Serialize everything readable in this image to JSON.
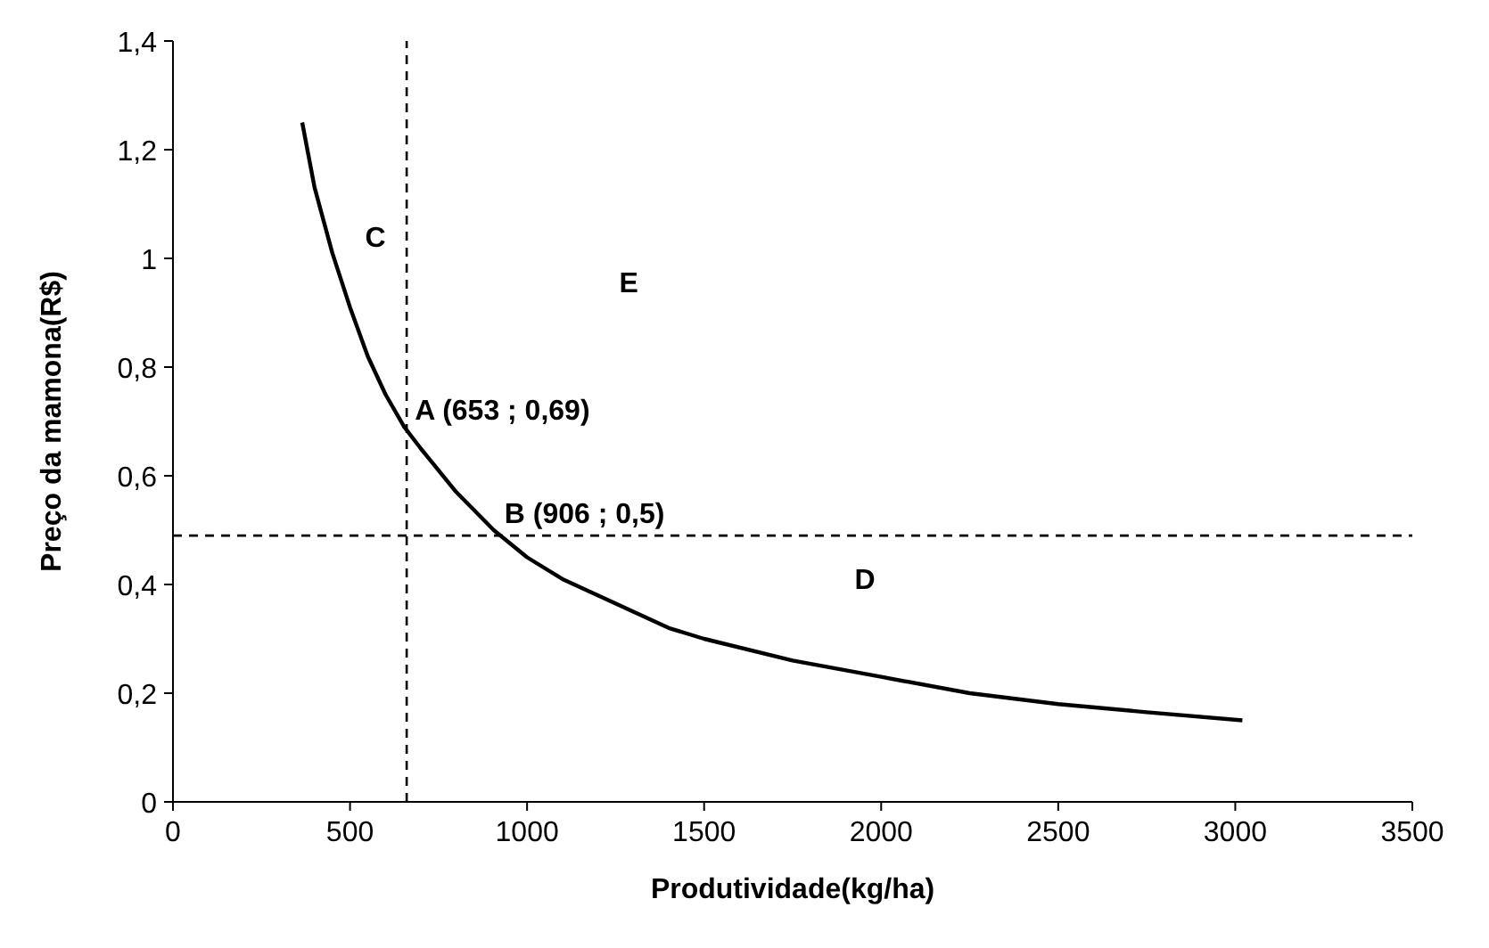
{
  "chart_data": {
    "type": "line",
    "xlabel": "Produtividade(kg/ha)",
    "ylabel": "Preço da mamona(R$)",
    "xlim": [
      0,
      3500
    ],
    "xticks": [
      0,
      500,
      1000,
      1500,
      2000,
      2500,
      3000,
      3500
    ],
    "ylim": [
      0,
      1.4
    ],
    "yticks": [
      0,
      {
        "value": 0.2,
        "label": "0,2"
      },
      {
        "value": 0.4,
        "label": "0,4"
      },
      {
        "value": 0.6,
        "label": "0,6"
      },
      {
        "value": 0.8,
        "label": "0,8"
      },
      1,
      {
        "value": 1.2,
        "label": "1,2"
      },
      {
        "value": 1.4,
        "label": "1,4"
      }
    ],
    "series": [
      {
        "color": "#000000",
        "x": [
          365,
          400,
          450,
          500,
          550,
          600,
          653,
          700,
          800,
          906,
          1000,
          1100,
          1200,
          1300,
          1400,
          1500,
          1750,
          2000,
          2250,
          2500,
          2750,
          3020
        ],
        "values": [
          1.25,
          1.13,
          1.01,
          0.91,
          0.82,
          0.75,
          0.69,
          0.65,
          0.57,
          0.5,
          0.45,
          0.41,
          0.38,
          0.35,
          0.32,
          0.3,
          0.26,
          0.23,
          0.2,
          0.18,
          0.165,
          0.15
        ]
      }
    ],
    "ref_lines": [
      {
        "axis": "x",
        "value": 660,
        "color": "#000000",
        "line_style": "dashed"
      },
      {
        "axis": "y",
        "value": 0.49,
        "color": "#000000",
        "line_style": "dashed"
      }
    ],
    "annotations": [
      {
        "text": "A (653 ; 0,69)",
        "x": 653,
        "y": 0.69
      },
      {
        "text": "B (906 ; 0,5)",
        "x": 906,
        "y": 0.5
      },
      "C",
      "E",
      "D"
    ],
    "grid": false,
    "marker": "none",
    "line_style": "solid"
  }
}
